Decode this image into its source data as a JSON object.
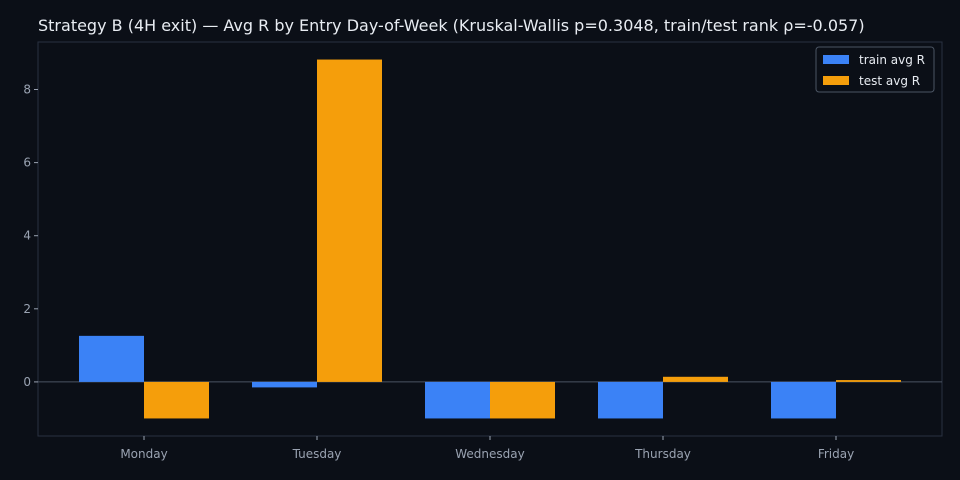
{
  "chart_data": {
    "type": "bar",
    "title": "Strategy B (4H exit) — Avg R by Entry Day-of-Week (Kruskal-Wallis p=0.3048, train/test rank ρ=-0.057)",
    "xlabel": "",
    "ylabel": "",
    "categories": [
      "Monday",
      "Tuesday",
      "Wednesday",
      "Thursday",
      "Friday"
    ],
    "series": [
      {
        "name": "train avg R",
        "color": "#3b82f6",
        "values": [
          1.26,
          -0.15,
          -1.0,
          -1.0,
          -1.0
        ]
      },
      {
        "name": "test avg R",
        "color": "#f59e0b",
        "values": [
          -1.0,
          8.82,
          -1.0,
          0.14,
          0.05
        ]
      }
    ],
    "ylim": [
      -1.48,
      9.3
    ],
    "yticks": [
      0,
      2,
      4,
      6,
      8
    ],
    "grid": false,
    "legend_position": "top-right",
    "zero_line": true,
    "colors": {
      "background": "#0b0f17",
      "axes": "#2a3140",
      "text": "#e8ecf2",
      "tick_text": "#9aa3b2",
      "zero_line": "#4b5563"
    }
  }
}
